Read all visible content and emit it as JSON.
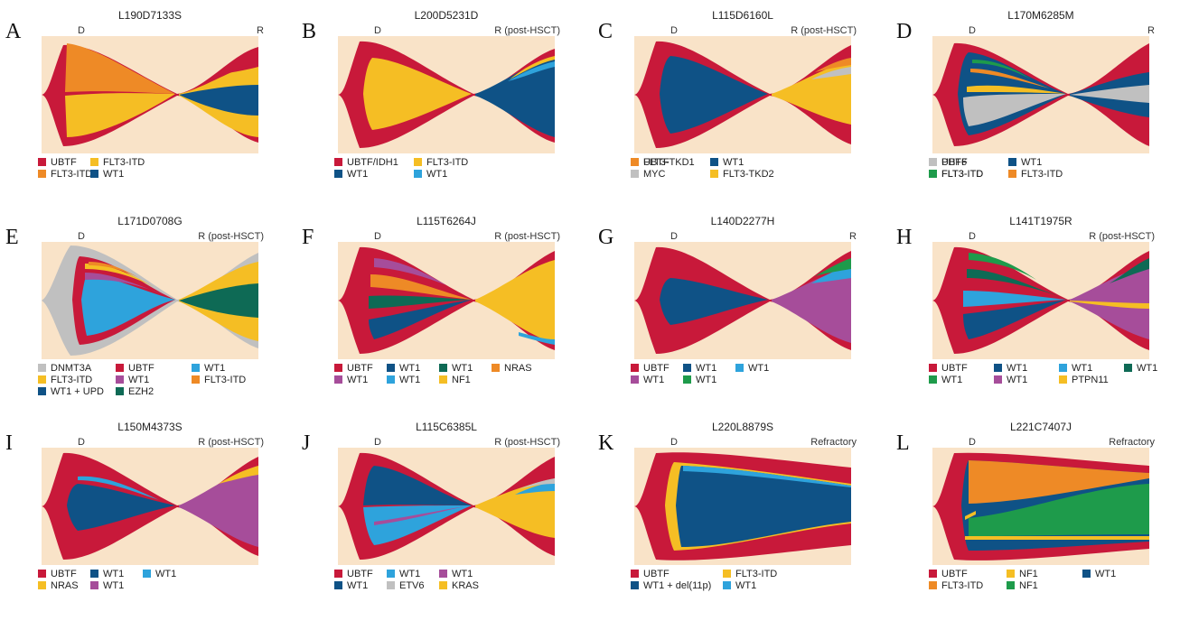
{
  "colors": {
    "bg": "#f9e3c8",
    "UBTF": "#c8193a",
    "FLT3-ITD": "#f5be24",
    "FLT3-ITD-orange": "#ee8a26",
    "WT1": "#0f5286",
    "WT1-light": "#2ea3dc",
    "PHF6": "#c0c0c0",
    "MYC": "#c0c0c0",
    "DNMT3A": "#c0c0c0",
    "purple": "#a64d9a",
    "green": "#1e9b4b",
    "teal": "#0e6a55",
    "grey": "#c0c0c0"
  },
  "panels": [
    {
      "letter": "A",
      "title": "L190D7133S",
      "d": "D",
      "r": "R",
      "legend": [
        {
          "label": "UBTF",
          "color": "#c8193a"
        },
        {
          "label": "FLT3-ITD",
          "color": "#f5be24"
        },
        {
          "label": "FLT3-ITD",
          "color": "#ee8a26"
        },
        {
          "label": "WT1",
          "color": "#0f5286"
        }
      ]
    },
    {
      "letter": "B",
      "title": "L200D5231D",
      "d": "D",
      "r": "R (post-HSCT)",
      "legend": [
        {
          "label": "UBTF/IDH1",
          "color": "#c8193a"
        },
        {
          "label": "FLT3-ITD",
          "color": "#f5be24"
        },
        {
          "label": "WT1",
          "color": "#0f5286"
        },
        {
          "label": "WT1",
          "color": "#2ea3dc"
        }
      ]
    },
    {
      "letter": "C",
      "title": "L115D6160L",
      "d": "D",
      "r": "R (post-HSCT)",
      "legend": [
        {
          "label": "UBTF",
          "color": "#c8193a"
        },
        {
          "label": "WT1",
          "color": "#0f5286"
        },
        {
          "label": "FLT3-TKD1",
          "color": "#ee8a26"
        },
        {
          "label": "MYC",
          "color": "#c0c0c0"
        },
        {
          "label": "FLT3-TKD2",
          "color": "#f5be24"
        }
      ]
    },
    {
      "letter": "D",
      "title": "L170M6285M",
      "d": "D",
      "r": "R",
      "legend": [
        {
          "label": "UBTF",
          "color": "#c8193a"
        },
        {
          "label": "WT1",
          "color": "#0f5286"
        },
        {
          "label": "PHF6",
          "color": "#c0c0c0"
        },
        {
          "label": "FLT3-ITD",
          "color": "#f5be24"
        },
        {
          "label": "FLT3-ITD",
          "color": "#ee8a26"
        },
        {
          "label": "FLT3-ITD",
          "color": "#1e9b4b"
        }
      ]
    },
    {
      "letter": "E",
      "title": "L171D0708G",
      "d": "D",
      "r": "R (post-HSCT)",
      "legend": [
        {
          "label": "DNMT3A",
          "color": "#c0c0c0"
        },
        {
          "label": "UBTF",
          "color": "#c8193a"
        },
        {
          "label": "WT1",
          "color": "#2ea3dc"
        },
        {
          "label": "FLT3-ITD",
          "color": "#f5be24"
        },
        {
          "label": "WT1",
          "color": "#a64d9a"
        },
        {
          "label": "FLT3-ITD",
          "color": "#ee8a26"
        },
        {
          "label": "WT1 + UPD",
          "color": "#0f5286"
        },
        {
          "label": "EZH2",
          "color": "#0e6a55"
        }
      ]
    },
    {
      "letter": "F",
      "title": "L115T6264J",
      "d": "D",
      "r": "R (post-HSCT)",
      "legend": [
        {
          "label": "UBTF",
          "color": "#c8193a"
        },
        {
          "label": "WT1",
          "color": "#0f5286"
        },
        {
          "label": "WT1",
          "color": "#0e6a55"
        },
        {
          "label": "NRAS",
          "color": "#ee8a26"
        },
        {
          "label": "WT1",
          "color": "#a64d9a"
        },
        {
          "label": "WT1",
          "color": "#2ea3dc"
        },
        {
          "label": "NF1",
          "color": "#f5be24"
        }
      ]
    },
    {
      "letter": "G",
      "title": "L140D2277H",
      "d": "D",
      "r": "R",
      "legend": [
        {
          "label": "UBTF",
          "color": "#c8193a"
        },
        {
          "label": "WT1",
          "color": "#0f5286"
        },
        {
          "label": "WT1",
          "color": "#2ea3dc"
        },
        {
          "label": "WT1",
          "color": "#a64d9a"
        },
        {
          "label": "WT1",
          "color": "#1e9b4b"
        }
      ]
    },
    {
      "letter": "H",
      "title": "L141T1975R",
      "d": "D",
      "r": "R (post-HSCT)",
      "legend": [
        {
          "label": "UBTF",
          "color": "#c8193a"
        },
        {
          "label": "WT1",
          "color": "#0f5286"
        },
        {
          "label": "WT1",
          "color": "#2ea3dc"
        },
        {
          "label": "WT1",
          "color": "#0e6a55"
        },
        {
          "label": "WT1",
          "color": "#1e9b4b"
        },
        {
          "label": "WT1",
          "color": "#a64d9a"
        },
        {
          "label": "PTPN11",
          "color": "#f5be24"
        }
      ]
    },
    {
      "letter": "I",
      "title": "L150M4373S",
      "d": "D",
      "r": "R (post-HSCT)",
      "legend": [
        {
          "label": "UBTF",
          "color": "#c8193a"
        },
        {
          "label": "WT1",
          "color": "#0f5286"
        },
        {
          "label": "WT1",
          "color": "#2ea3dc"
        },
        {
          "label": "NRAS",
          "color": "#f5be24"
        },
        {
          "label": "WT1",
          "color": "#a64d9a"
        }
      ]
    },
    {
      "letter": "J",
      "title": "L115C6385L",
      "d": "D",
      "r": "R (post-HSCT)",
      "legend": [
        {
          "label": "UBTF",
          "color": "#c8193a"
        },
        {
          "label": "WT1",
          "color": "#2ea3dc"
        },
        {
          "label": "WT1",
          "color": "#a64d9a"
        },
        {
          "label": "WT1",
          "color": "#0f5286"
        },
        {
          "label": "ETV6",
          "color": "#c0c0c0"
        },
        {
          "label": "KRAS",
          "color": "#f5be24"
        }
      ]
    },
    {
      "letter": "K",
      "title": "L220L8879S",
      "d": "D",
      "r": "Refractory",
      "legend": [
        {
          "label": "UBTF",
          "color": "#c8193a"
        },
        {
          "label": "FLT3-ITD",
          "color": "#f5be24"
        },
        {
          "label": "WT1 + del(11p)",
          "color": "#0f5286"
        },
        {
          "label": "WT1",
          "color": "#2ea3dc"
        }
      ]
    },
    {
      "letter": "L",
      "title": "L221C7407J",
      "d": "D",
      "r": "Refractory",
      "legend": [
        {
          "label": "UBTF",
          "color": "#c8193a"
        },
        {
          "label": "NF1",
          "color": "#f5be24"
        },
        {
          "label": "WT1",
          "color": "#0f5286"
        },
        {
          "label": "FLT3-ITD",
          "color": "#ee8a26"
        },
        {
          "label": "NF1",
          "color": "#1e9b4b"
        }
      ]
    }
  ]
}
